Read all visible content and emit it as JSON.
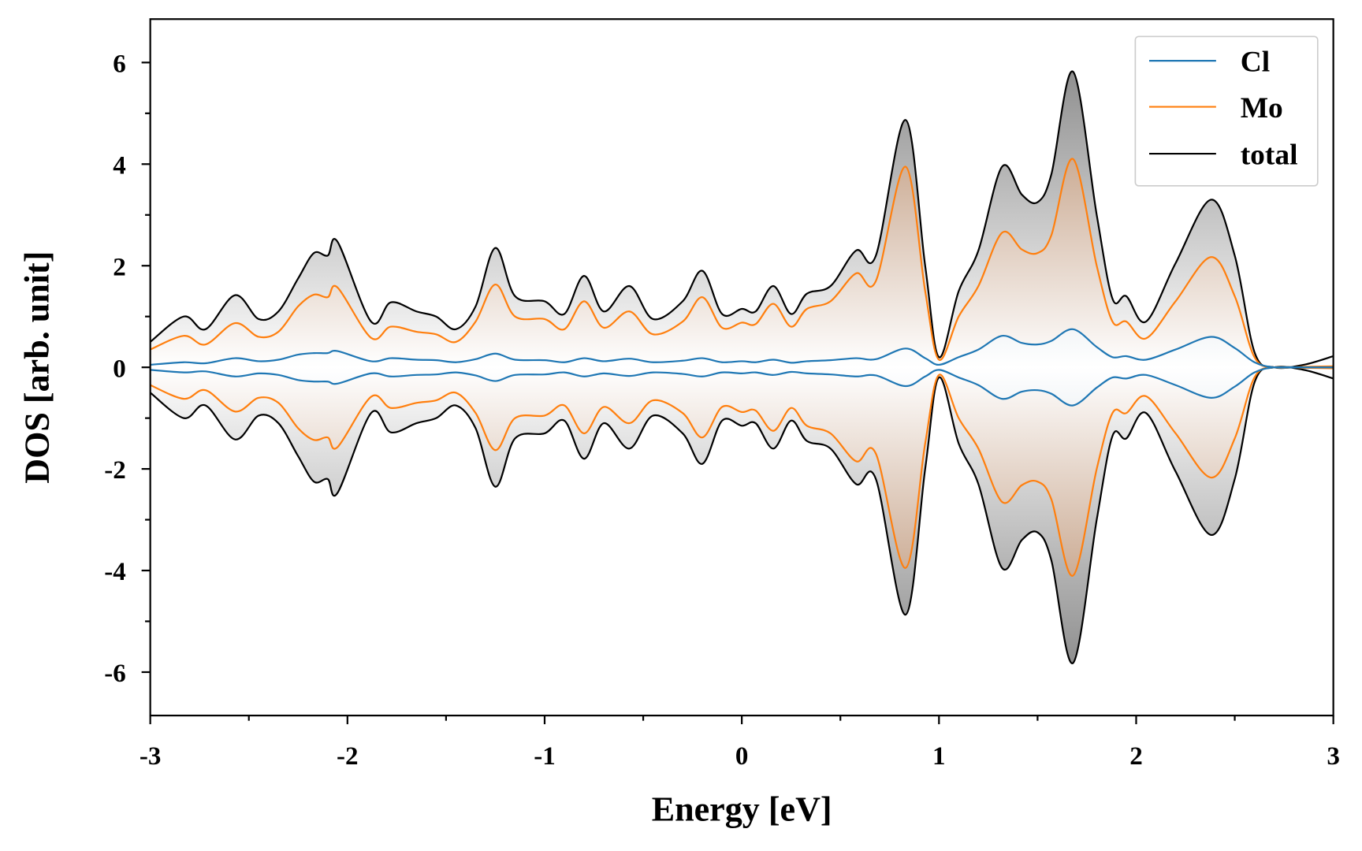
{
  "chart_data": {
    "type": "line",
    "title": "",
    "xlabel": "Energy [eV]",
    "ylabel": "DOS [arb. unit]",
    "xlim": [
      -3,
      3
    ],
    "ylim": [
      -6.8,
      6.8
    ],
    "xticks": [
      -3,
      -2,
      -1,
      0,
      1,
      2,
      3
    ],
    "xtick_labels": [
      "-3",
      "-2",
      "-1",
      "0",
      "1",
      "2",
      "3"
    ],
    "yticks": [
      -6,
      -4,
      -2,
      0,
      2,
      4,
      6
    ],
    "ytick_labels": [
      "-6",
      "-4",
      "-2",
      "0",
      "2",
      "4",
      "6"
    ],
    "grid": false,
    "legend_position": "top-right",
    "mirrored_negative": true,
    "x": [
      -3,
      -2.83,
      -2.72,
      -2.57,
      -2.45,
      -2.35,
      -2.25,
      -2.17,
      -2.1,
      -2.05,
      -1.88,
      -1.78,
      -1.65,
      -1.55,
      -1.45,
      -1.35,
      -1.25,
      -1.15,
      -1.0,
      -0.9,
      -0.8,
      -0.7,
      -0.57,
      -0.45,
      -0.3,
      -0.2,
      -0.1,
      0.0,
      0.07,
      0.16,
      0.25,
      0.33,
      0.45,
      0.58,
      0.68,
      0.83,
      0.93,
      1.0,
      1.1,
      1.2,
      1.32,
      1.42,
      1.5,
      1.57,
      1.68,
      1.8,
      1.88,
      1.95,
      2.05,
      2.2,
      2.38,
      2.5,
      2.6,
      2.7,
      2.85,
      3.0
    ],
    "series": [
      {
        "name": "Cl",
        "color": "#1f77b4",
        "fill": "#9fb3c4",
        "values": [
          0.05,
          0.1,
          0.08,
          0.18,
          0.12,
          0.15,
          0.25,
          0.28,
          0.28,
          0.32,
          0.12,
          0.18,
          0.15,
          0.14,
          0.1,
          0.16,
          0.27,
          0.15,
          0.14,
          0.1,
          0.18,
          0.12,
          0.17,
          0.1,
          0.13,
          0.18,
          0.1,
          0.12,
          0.1,
          0.15,
          0.09,
          0.12,
          0.14,
          0.18,
          0.16,
          0.37,
          0.18,
          0.05,
          0.2,
          0.35,
          0.62,
          0.48,
          0.45,
          0.52,
          0.75,
          0.4,
          0.2,
          0.22,
          0.15,
          0.35,
          0.6,
          0.38,
          0.1,
          0.0,
          0.0,
          0.0
        ]
      },
      {
        "name": "Mo",
        "color": "#ff7f0e",
        "fill": "#b48664",
        "values": [
          0.35,
          0.62,
          0.45,
          0.87,
          0.6,
          0.7,
          1.2,
          1.43,
          1.38,
          1.57,
          0.58,
          0.8,
          0.7,
          0.65,
          0.5,
          0.9,
          1.63,
          1.0,
          0.95,
          0.75,
          1.3,
          0.78,
          1.1,
          0.65,
          0.9,
          1.38,
          0.78,
          0.88,
          0.85,
          1.25,
          0.8,
          1.15,
          1.3,
          1.85,
          1.7,
          3.95,
          1.5,
          0.15,
          1.0,
          1.6,
          2.65,
          2.32,
          2.25,
          2.6,
          4.1,
          2.0,
          0.9,
          0.9,
          0.57,
          1.3,
          2.17,
          1.4,
          0.2,
          0.0,
          0.01,
          0.02
        ]
      },
      {
        "name": "total",
        "color": "#000000",
        "fill": "#8c8c8c",
        "values": [
          0.5,
          1.0,
          0.75,
          1.42,
          0.95,
          1.1,
          1.75,
          2.25,
          2.2,
          2.47,
          0.9,
          1.28,
          1.1,
          1.0,
          0.75,
          1.2,
          2.35,
          1.4,
          1.3,
          1.05,
          1.8,
          1.1,
          1.6,
          0.95,
          1.3,
          1.9,
          1.05,
          1.15,
          1.1,
          1.6,
          1.05,
          1.45,
          1.6,
          2.3,
          2.2,
          4.87,
          2.0,
          0.2,
          1.5,
          2.3,
          3.95,
          3.4,
          3.25,
          3.8,
          5.82,
          3.0,
          1.35,
          1.4,
          0.9,
          2.05,
          3.3,
          2.2,
          0.3,
          0.0,
          0.05,
          0.22
        ]
      }
    ]
  }
}
